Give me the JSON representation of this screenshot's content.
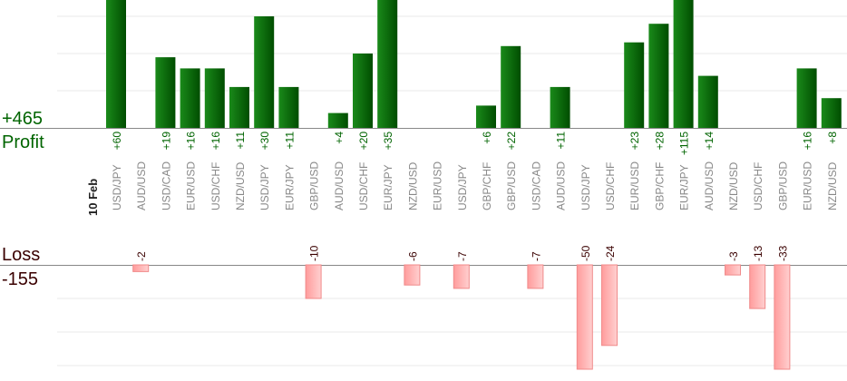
{
  "summary": {
    "profit_total": "+465",
    "profit_label": "Profit",
    "loss_label": "Loss",
    "loss_total": "-155",
    "date_label": "10 Feb"
  },
  "colors": {
    "profit": "#006400",
    "profit_light": "#1a8a1a",
    "loss_fill": "#ffb3b3",
    "loss_border": "#f08a8a",
    "loss_text": "#3a0000",
    "pair_text": "#888888",
    "grid": "#e8e8e8",
    "axis": "#888888"
  },
  "chart_data": {
    "type": "bar",
    "title": "",
    "xlabel": "",
    "ylabel": "",
    "profit_ylim": [
      0,
      34
    ],
    "loss_ylim": [
      -31,
      0
    ],
    "grid": true,
    "categories": [
      "USD/JPY",
      "AUD/USD",
      "USD/CAD",
      "EUR/USD",
      "USD/CHF",
      "NZD/USD",
      "USD/JPY",
      "EUR/JPY",
      "GBP/USD",
      "AUD/USD",
      "USD/CHF",
      "EUR/JPY",
      "NZD/USD",
      "EUR/USD",
      "USD/JPY",
      "GBP/CHF",
      "GBP/USD",
      "USD/CAD",
      "AUD/USD",
      "USD/JPY",
      "USD/CHF",
      "EUR/USD",
      "GBP/CHF",
      "EUR/JPY",
      "AUD/USD",
      "NZD/USD",
      "USD/CHF",
      "GBP/USD",
      "EUR/USD",
      "NZD/USD"
    ],
    "values": [
      60,
      -2,
      19,
      16,
      16,
      11,
      30,
      11,
      -10,
      4,
      20,
      35,
      -6,
      null,
      -7,
      6,
      22,
      -7,
      11,
      -50,
      -24,
      23,
      28,
      115,
      14,
      -3,
      -13,
      -33,
      16,
      8
    ],
    "labels": [
      "+60",
      "-2",
      "+19",
      "+16",
      "+16",
      "+11",
      "+30",
      "+11",
      "-10",
      "+4",
      "+20",
      "+35",
      "-6",
      "",
      "-7",
      "+6",
      "+22",
      "-7",
      "+11",
      "-50",
      "-24",
      "+23",
      "+28",
      "+115",
      "+14",
      "-3",
      "-13",
      "-33",
      "+16",
      "+8"
    ]
  }
}
